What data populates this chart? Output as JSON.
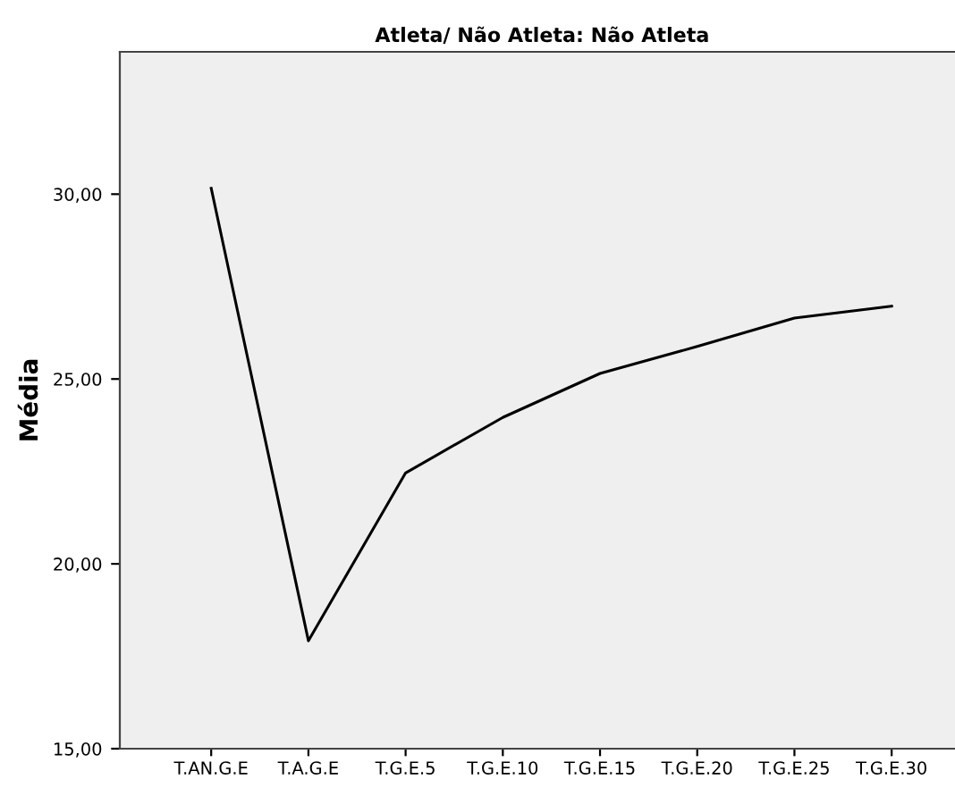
{
  "chart_data": {
    "type": "line",
    "title": "Atleta/ Não Atleta: Não Atleta",
    "ylabel": "Média",
    "categories": [
      "T.AN.G.E",
      "T.A.G.E",
      "T.G.E.5",
      "T.G.E.10",
      "T.G.E.15",
      "T.G.E.20",
      "T.G.E.25",
      "T.G.E.30"
    ],
    "series": [
      {
        "color": "#000000",
        "values": [
          30.16,
          17.92,
          22.46,
          23.96,
          25.15,
          25.88,
          26.65,
          26.97
        ]
      }
    ],
    "ylim": [
      15,
      33.85
    ],
    "yticks": [
      {
        "value": 15,
        "label": "15,00"
      },
      {
        "value": 20,
        "label": "20,00"
      },
      {
        "value": 25,
        "label": "25,00"
      },
      {
        "value": 30,
        "label": "30,00"
      }
    ],
    "grid": false,
    "legend": false,
    "marker": "none",
    "line_style": "solid"
  }
}
